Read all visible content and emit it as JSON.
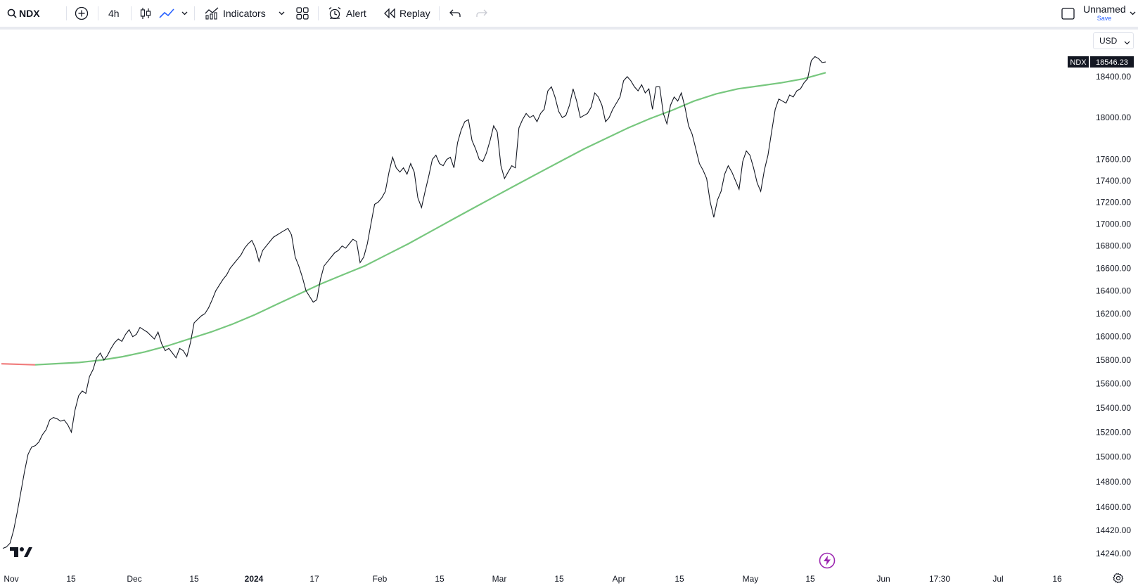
{
  "toolbar": {
    "symbol": "NDX",
    "interval": "4h",
    "indicators_label": "Indicators",
    "alert_label": "Alert",
    "replay_label": "Replay",
    "layout_name": "Unnamed",
    "save_label": "Save"
  },
  "chart": {
    "currency": "USD",
    "symbol_tag": "NDX",
    "last_price": "18546.23",
    "line_color": "#131722",
    "ma_color": "#77c77e",
    "ma_early_color": "#f07b7b",
    "price_axis": [
      "18400.00",
      "18000.00",
      "17600.00",
      "17400.00",
      "17200.00",
      "17000.00",
      "16800.00",
      "16600.00",
      "16400.00",
      "16200.00",
      "16000.00",
      "15800.00",
      "15600.00",
      "15400.00",
      "15200.00",
      "15000.00",
      "14800.00",
      "14600.00",
      "14420.00",
      "14240.00"
    ],
    "time_axis": [
      "Nov",
      "15",
      "Dec",
      "15",
      "2024",
      "17",
      "Feb",
      "15",
      "Mar",
      "15",
      "Apr",
      "15",
      "May",
      "15",
      "Jun",
      "17:30",
      "Jul",
      "16"
    ]
  },
  "chart_data": {
    "type": "line",
    "series": [
      {
        "name": "NDX",
        "y": [
          14280,
          14290,
          14320,
          14420,
          14560,
          14720,
          14880,
          15020,
          15080,
          15090,
          15120,
          15180,
          15220,
          15300,
          15320,
          15310,
          15290,
          15300,
          15260,
          15200,
          15380,
          15500,
          15540,
          15520,
          15660,
          15720,
          15820,
          15860,
          15800,
          15840,
          15900,
          15950,
          15980,
          15960,
          16020,
          16060,
          16000,
          16020,
          16080,
          16060,
          16040,
          16010,
          15980,
          16040,
          15940,
          15880,
          15900,
          15860,
          15820,
          15900,
          15880,
          15830,
          15950,
          16120,
          16150,
          16180,
          16200,
          16250,
          16320,
          16400,
          16450,
          16500,
          16540,
          16600,
          16640,
          16680,
          16720,
          16780,
          16820,
          16850,
          16780,
          16660,
          16760,
          16800,
          16840,
          16880,
          16900,
          16920,
          16940,
          16960,
          16900,
          16700,
          16620,
          16520,
          16400,
          16350,
          16300,
          16320,
          16500,
          16620,
          16660,
          16700,
          16740,
          16760,
          16800,
          16780,
          16820,
          16860,
          16840,
          16650,
          16700,
          16820,
          17000,
          17180,
          17200,
          17240,
          17300,
          17480,
          17620,
          17520,
          17480,
          17520,
          17460,
          17560,
          17480,
          17240,
          17150,
          17300,
          17440,
          17600,
          17640,
          17560,
          17540,
          17600,
          17620,
          17520,
          17760,
          17880,
          17960,
          17980,
          17780,
          17700,
          17600,
          17580,
          17660,
          17780,
          17920,
          17860,
          17540,
          17420,
          17480,
          17540,
          17520,
          17900,
          17980,
          18040,
          18000,
          18020,
          17960,
          18040,
          18080,
          18260,
          18300,
          18200,
          18060,
          18000,
          18020,
          18120,
          18280,
          18160,
          18000,
          18020,
          18040,
          18100,
          18240,
          18200,
          18120,
          17960,
          18000,
          18080,
          18140,
          18200,
          18360,
          18400,
          18360,
          18300,
          18260,
          18320,
          18240,
          18280,
          18080,
          18300,
          18300,
          18040,
          17940,
          18120,
          18200,
          18160,
          18240,
          18100,
          17920,
          17840,
          17700,
          17560,
          17500,
          17420,
          17200,
          17060,
          17220,
          17300,
          17460,
          17540,
          17480,
          17400,
          17320,
          17580,
          17680,
          17640,
          17520,
          17380,
          17300,
          17500,
          17640,
          17860,
          18080,
          18180,
          18160,
          18140,
          18220,
          18200,
          18260,
          18280,
          18340,
          18380,
          18560,
          18600,
          18580,
          18540,
          18546
        ]
      },
      {
        "name": "MA",
        "y": [
          15760,
          15770,
          15780,
          15800,
          15830,
          15870,
          15920,
          15980,
          16040,
          16110,
          16190,
          16280,
          16370,
          16460,
          16540,
          16620,
          16720,
          16820,
          16930,
          17040,
          17150,
          17260,
          17370,
          17480,
          17590,
          17700,
          17800,
          17900,
          17990,
          18070,
          18160,
          18230,
          18280,
          18310,
          18340,
          18380,
          18440
        ]
      }
    ],
    "ylim": [
      14240,
      18620
    ],
    "y_scale": "log"
  }
}
